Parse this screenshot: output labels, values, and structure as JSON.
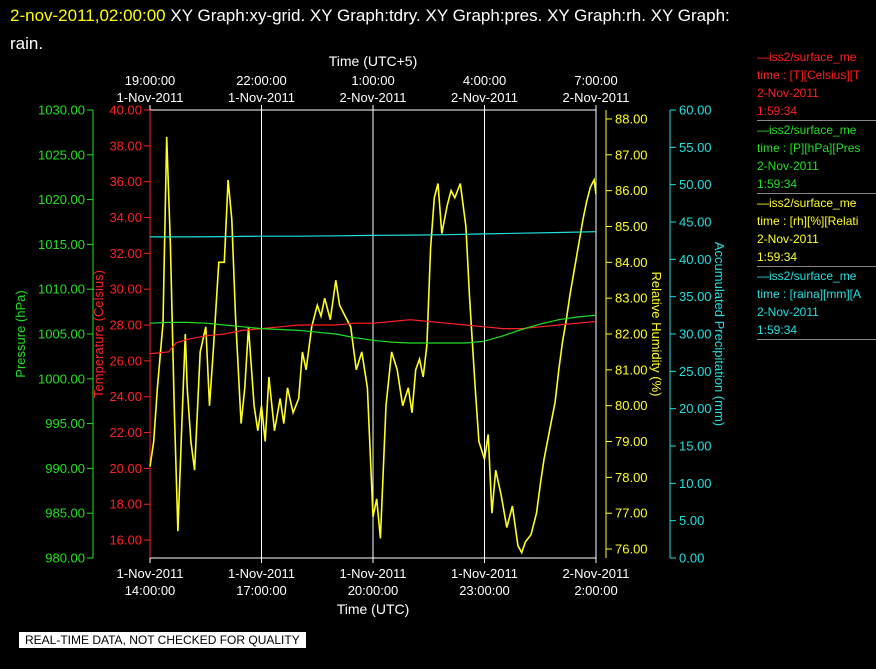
{
  "header": {
    "timestamp": "2-nov-2011,02:00:00",
    "title_rest": "XY Graph:xy-grid.  XY Graph:tdry.  XY Graph:pres.  XY Graph:rh.  XY Graph:",
    "title_wrap": "rain."
  },
  "footer": {
    "warning": "REAL-TIME DATA, NOT CHECKED FOR QUALITY"
  },
  "legend": [
    {
      "line1": "—iss2/surface_me",
      "line2": "time : [T][Celsius][T",
      "line3": "2-Nov-2011",
      "line4": "1:59:34",
      "color": "#ff2020"
    },
    {
      "line1": "—iss2/surface_me",
      "line2": "time : [P][hPa][Pres",
      "line3": "2-Nov-2011",
      "line4": "1:59:34",
      "color": "#20e020"
    },
    {
      "line1": "—iss2/surface_me",
      "line2": "time : [rh][%][Relati",
      "line3": "2-Nov-2011",
      "line4": "1:59:34",
      "color": "#ffff20"
    },
    {
      "line1": "—iss2/surface_me",
      "line2": "time : [raina][mm][A",
      "line3": "2-Nov-2011",
      "line4": "1:59:34",
      "color": "#20e0e0"
    }
  ],
  "chart_data": {
    "type": "line",
    "top_axis": {
      "label": "Time (UTC+5)",
      "ticks": [
        {
          "time": "19:00:00",
          "date": "1-Nov-2011"
        },
        {
          "time": "22:00:00",
          "date": "1-Nov-2011"
        },
        {
          "time": "1:00:00",
          "date": "2-Nov-2011"
        },
        {
          "time": "4:00:00",
          "date": "2-Nov-2011"
        },
        {
          "time": "7:00:00",
          "date": "2-Nov-2011"
        }
      ]
    },
    "bottom_axis": {
      "label": "Time (UTC)",
      "range_hours": [
        14,
        26
      ],
      "ticks": [
        {
          "date": "1-Nov-2011",
          "time": "14:00:00"
        },
        {
          "date": "1-Nov-2011",
          "time": "17:00:00"
        },
        {
          "date": "1-Nov-2011",
          "time": "20:00:00"
        },
        {
          "date": "1-Nov-2011",
          "time": "23:00:00"
        },
        {
          "date": "2-Nov-2011",
          "time": "2:00:00"
        }
      ]
    },
    "axes": {
      "pressure": {
        "label": "Pressure (hPa)",
        "ylim": [
          980,
          1030
        ],
        "ticks": [
          "980.00",
          "985.00",
          "990.00",
          "995.00",
          "1000.00",
          "1005.00",
          "1010.00",
          "1015.00",
          "1020.00",
          "1025.00",
          "1030.00"
        ],
        "color": "#20e020"
      },
      "temperature": {
        "label": "Temperature (Celsius)",
        "ylim": [
          15,
          40
        ],
        "ticks": [
          "16.00",
          "18.00",
          "20.00",
          "22.00",
          "24.00",
          "26.00",
          "28.00",
          "30.00",
          "32.00",
          "34.00",
          "36.00",
          "38.00",
          "40.00"
        ],
        "color": "#ff2020"
      },
      "humidity": {
        "label": "Relative Humidity (%)",
        "ylim": [
          75.75,
          88.25
        ],
        "ticks": [
          "76.00",
          "77.00",
          "78.00",
          "79.00",
          "80.00",
          "81.00",
          "82.00",
          "83.00",
          "84.00",
          "85.00",
          "86.00",
          "87.00",
          "88.00"
        ],
        "color": "#ffff20"
      },
      "precip": {
        "label": "Accumulated Precipitation (mm)",
        "ylim": [
          0,
          60
        ],
        "ticks": [
          "0.00",
          "5.00",
          "10.00",
          "15.00",
          "20.00",
          "25.00",
          "30.00",
          "35.00",
          "40.00",
          "45.00",
          "50.00",
          "55.00",
          "60.00"
        ],
        "color": "#20e0e0"
      }
    },
    "grid": true,
    "series": [
      {
        "name": "iss2/surface_me time : [rh][%][Relati",
        "axis": "humidity",
        "color": "#ffff20",
        "x": [
          14.0,
          14.1,
          14.2,
          14.35,
          14.45,
          14.55,
          14.65,
          14.75,
          14.85,
          14.95,
          15.0,
          15.1,
          15.2,
          15.35,
          15.5,
          15.6,
          15.7,
          15.85,
          16.0,
          16.1,
          16.2,
          16.3,
          16.45,
          16.55,
          16.65,
          16.8,
          16.9,
          17.0,
          17.1,
          17.2,
          17.35,
          17.5,
          17.6,
          17.7,
          17.85,
          18.0,
          18.1,
          18.2,
          18.35,
          18.5,
          18.6,
          18.7,
          18.85,
          19.0,
          19.1,
          19.25,
          19.4,
          19.55,
          19.7,
          19.85,
          20.0,
          20.1,
          20.2,
          20.35,
          20.5,
          20.65,
          20.8,
          20.95,
          21.05,
          21.15,
          21.25,
          21.35,
          21.45,
          21.55,
          21.65,
          21.75,
          21.85,
          22.0,
          22.1,
          22.2,
          22.35,
          22.5,
          22.6,
          22.75,
          22.85,
          23.0,
          23.1,
          23.2,
          23.3,
          23.45,
          23.6,
          23.75,
          23.9,
          24.0,
          24.1,
          24.25,
          24.4,
          24.5,
          24.6,
          24.75,
          24.9,
          25.0,
          25.1,
          25.2,
          25.3,
          25.45,
          25.55,
          25.65,
          25.75,
          25.85,
          25.95,
          26.0
        ],
        "values": [
          78.3,
          79.0,
          80.5,
          82.3,
          87.5,
          84.5,
          80.0,
          76.5,
          79.3,
          82.0,
          80.5,
          79.0,
          78.2,
          81.5,
          82.2,
          80.0,
          81.5,
          84.0,
          84.0,
          86.3,
          85.2,
          82.5,
          79.5,
          80.5,
          82.2,
          80.0,
          79.3,
          80.0,
          79.0,
          80.8,
          79.3,
          80.2,
          79.5,
          80.5,
          79.8,
          80.2,
          81.5,
          81.0,
          82.2,
          82.8,
          82.5,
          83.0,
          82.4,
          83.5,
          82.8,
          82.5,
          82.2,
          81.0,
          81.5,
          80.5,
          76.9,
          77.4,
          76.3,
          80.0,
          81.5,
          81.0,
          80.0,
          80.5,
          79.8,
          81.0,
          81.3,
          80.8,
          81.7,
          84.4,
          85.8,
          86.2,
          84.8,
          85.6,
          86.0,
          85.8,
          86.2,
          85.0,
          83.0,
          80.5,
          79.0,
          78.5,
          79.2,
          77.0,
          78.2,
          77.5,
          76.6,
          77.2,
          76.1,
          75.9,
          76.2,
          76.4,
          77.0,
          77.8,
          78.5,
          79.3,
          80.1,
          81.0,
          81.8,
          82.4,
          83.1,
          84.0,
          84.6,
          85.2,
          85.7,
          86.1,
          86.3,
          85.9
        ]
      },
      {
        "name": "iss2/surface_me time : [T][Celsius][T",
        "axis": "temperature",
        "color": "#ff2020",
        "x": [
          14.0,
          14.5,
          14.7,
          15.0,
          15.5,
          16.0,
          16.5,
          17.0,
          17.5,
          18.0,
          18.5,
          19.0,
          19.5,
          20.0,
          20.5,
          21.0,
          21.5,
          22.0,
          22.5,
          23.0,
          23.5,
          24.0,
          24.5,
          25.0,
          25.5,
          26.0
        ],
        "values": [
          26.4,
          26.5,
          27.0,
          27.2,
          27.4,
          27.5,
          27.7,
          27.8,
          27.9,
          28.0,
          28.0,
          28.0,
          28.1,
          28.1,
          28.2,
          28.3,
          28.2,
          28.1,
          28.0,
          27.9,
          27.8,
          27.8,
          27.9,
          28.0,
          28.1,
          28.2
        ]
      },
      {
        "name": "iss2/surface_me time : [P][hPa][Pres",
        "axis": "pressure",
        "color": "#20e020",
        "x": [
          14.0,
          14.5,
          15.0,
          15.5,
          16.0,
          16.5,
          17.0,
          17.5,
          18.0,
          18.5,
          19.0,
          19.5,
          20.0,
          20.5,
          21.0,
          21.5,
          22.0,
          22.5,
          23.0,
          23.5,
          24.0,
          24.5,
          25.0,
          25.5,
          26.0
        ],
        "values": [
          1006.2,
          1006.3,
          1006.3,
          1006.2,
          1006.0,
          1005.8,
          1005.6,
          1005.5,
          1005.4,
          1005.2,
          1005.0,
          1004.6,
          1004.3,
          1004.1,
          1004.0,
          1004.0,
          1004.0,
          1004.0,
          1004.2,
          1004.8,
          1005.5,
          1006.1,
          1006.6,
          1006.9,
          1007.1
        ]
      },
      {
        "name": "iss2/surface_me time : [raina][mm][A",
        "axis": "precip",
        "color": "#20e0e0",
        "x": [
          14.0,
          15.0,
          16.0,
          17.0,
          18.0,
          19.0,
          20.0,
          21.0,
          22.0,
          23.0,
          24.0,
          25.0,
          26.0
        ],
        "values": [
          43.0,
          43.0,
          43.05,
          43.1,
          43.1,
          43.15,
          43.2,
          43.25,
          43.3,
          43.4,
          43.5,
          43.6,
          43.7
        ]
      }
    ]
  }
}
